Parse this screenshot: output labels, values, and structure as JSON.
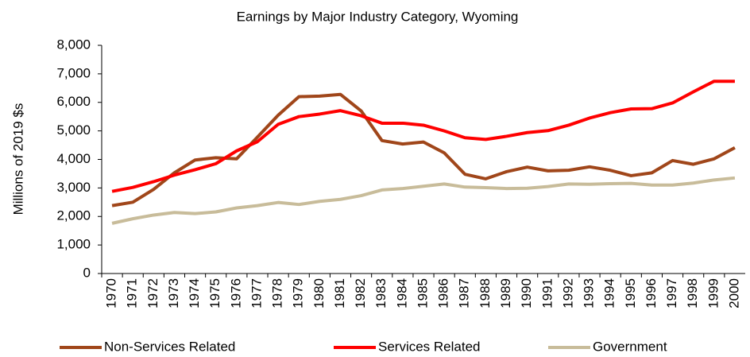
{
  "chart_data": {
    "type": "line",
    "title": "Earnings by Major Industry Category, Wyoming",
    "y_label": "Millions of 2019 $s",
    "categories": [
      "1970",
      "1971",
      "1972",
      "1973",
      "1974",
      "1975",
      "1976",
      "1977",
      "1978",
      "1979",
      "1980",
      "1981",
      "1982",
      "1983",
      "1984",
      "1985",
      "1986",
      "1987",
      "1988",
      "1989",
      "1990",
      "1991",
      "1992",
      "1993",
      "1994",
      "1995",
      "1996",
      "1997",
      "1998",
      "1999",
      "2000"
    ],
    "series": [
      {
        "name": "Non-Services Related",
        "color": "#a0461a",
        "values": [
          2380,
          2500,
          2950,
          3530,
          3980,
          4060,
          4020,
          4780,
          5550,
          6200,
          6220,
          6280,
          5700,
          4660,
          4540,
          4610,
          4230,
          3480,
          3320,
          3570,
          3730,
          3600,
          3620,
          3740,
          3620,
          3430,
          3530,
          3960,
          3830,
          4020,
          4410
        ]
      },
      {
        "name": "Services Related",
        "color": "#ff0000",
        "values": [
          2880,
          3020,
          3220,
          3450,
          3640,
          3850,
          4300,
          4620,
          5230,
          5500,
          5590,
          5710,
          5530,
          5270,
          5270,
          5200,
          5000,
          4760,
          4700,
          4810,
          4940,
          5010,
          5200,
          5450,
          5640,
          5770,
          5780,
          5980,
          6370,
          6740,
          6740
        ]
      },
      {
        "name": "Government",
        "color": "#c8bc9a",
        "values": [
          1760,
          1920,
          2050,
          2140,
          2100,
          2160,
          2300,
          2380,
          2490,
          2420,
          2530,
          2600,
          2730,
          2930,
          2980,
          3060,
          3140,
          3030,
          3010,
          2980,
          2990,
          3050,
          3140,
          3130,
          3150,
          3160,
          3100,
          3100,
          3170,
          3280,
          3350
        ]
      }
    ],
    "ylim": [
      0,
      8000
    ],
    "yticks": [
      0,
      {
        "value": 1000,
        "label": "1,000"
      },
      {
        "value": 2000,
        "label": "2,000"
      },
      {
        "value": 3000,
        "label": "3,000"
      },
      {
        "value": 4000,
        "label": "4,000"
      },
      {
        "value": 5000,
        "label": "5,000"
      },
      {
        "value": 6000,
        "label": "6,000"
      },
      {
        "value": 7000,
        "label": "7,000"
      },
      {
        "value": 8000,
        "label": "8,000"
      }
    ],
    "grid": false,
    "legend": "bottom"
  }
}
